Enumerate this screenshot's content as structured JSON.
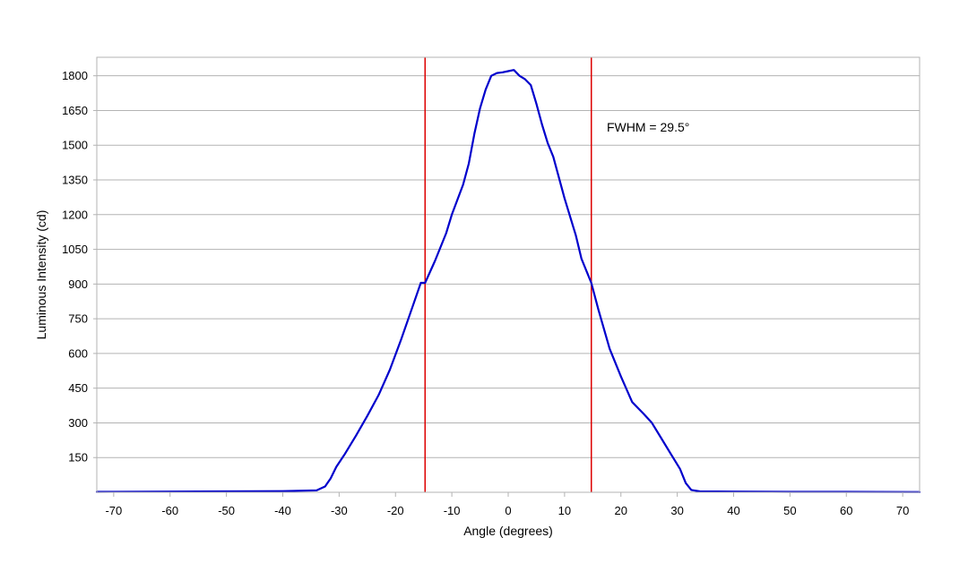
{
  "chart_data": {
    "type": "line",
    "title": "",
    "xlabel": "Angle (degrees)",
    "ylabel": "Luminous Intensity (cd)",
    "xlim": [
      -73,
      73
    ],
    "ylim": [
      0,
      1880
    ],
    "x_ticks": [
      -70,
      -60,
      -50,
      -40,
      -30,
      -20,
      -10,
      0,
      10,
      20,
      30,
      40,
      50,
      60,
      70
    ],
    "y_ticks": [
      150,
      300,
      450,
      600,
      750,
      900,
      1050,
      1200,
      1350,
      1500,
      1650,
      1800
    ],
    "grid": "horizontal",
    "series": [
      {
        "color": "#0000cc",
        "x": [
          -73,
          -60,
          -50,
          -40,
          -34,
          -32.5,
          -31.5,
          -30.5,
          -29,
          -27,
          -25,
          -23,
          -21,
          -19,
          -17,
          -15.5,
          -14.75,
          -13,
          -11,
          -10,
          -8,
          -7,
          -6,
          -5,
          -4,
          -3,
          -2,
          -1,
          0,
          1,
          2,
          3,
          4,
          5,
          6,
          7,
          8,
          10,
          12,
          13,
          14.75,
          16,
          18,
          20,
          22,
          24,
          25.5,
          27,
          29,
          30.5,
          31.5,
          32.5,
          34,
          40,
          50,
          60,
          73
        ],
        "y": [
          2,
          3,
          4,
          5,
          8,
          25,
          60,
          110,
          165,
          245,
          330,
          420,
          530,
          660,
          800,
          905,
          905,
          1000,
          1120,
          1200,
          1330,
          1420,
          1550,
          1660,
          1740,
          1800,
          1812,
          1815,
          1820,
          1825,
          1800,
          1785,
          1760,
          1680,
          1590,
          1510,
          1450,
          1270,
          1110,
          1010,
          905,
          790,
          620,
          500,
          390,
          340,
          300,
          240,
          160,
          100,
          40,
          10,
          4,
          3,
          2,
          2,
          1
        ]
      }
    ],
    "markers": [
      {
        "x": -14.75,
        "color": "#dd0000"
      },
      {
        "x": 14.75,
        "color": "#dd0000"
      }
    ],
    "annotations": [
      {
        "text": "FWHM = 29.5°"
      }
    ]
  }
}
